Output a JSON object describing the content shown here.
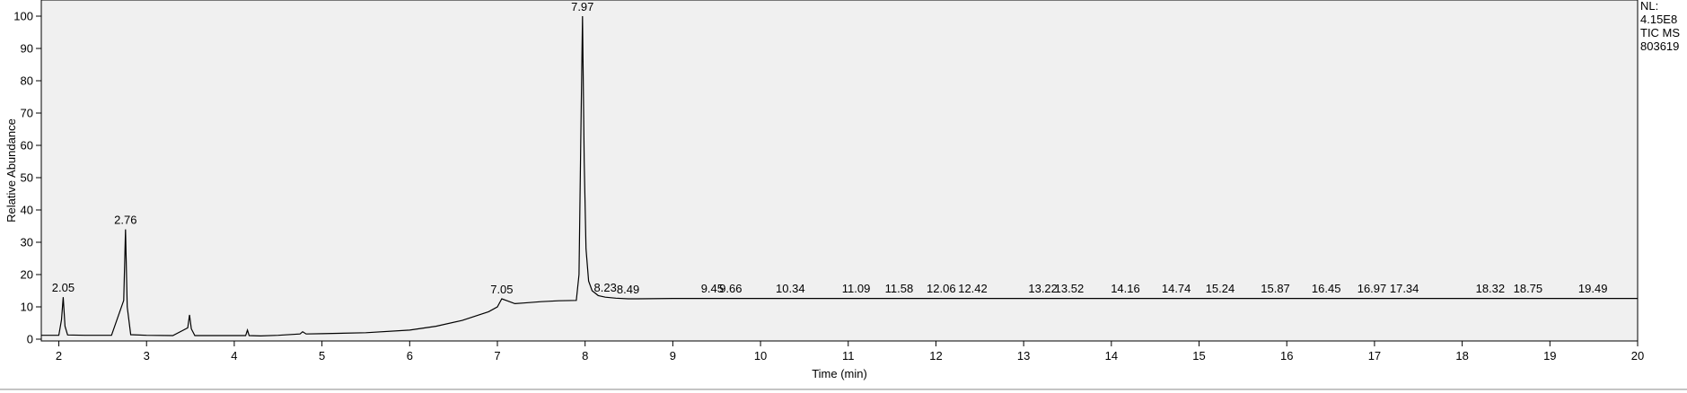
{
  "chart_data": {
    "type": "line",
    "xlabel": "Time (min)",
    "ylabel": "Relative Abundance",
    "xlim": [
      1.8,
      20
    ],
    "ylim": [
      0,
      100
    ],
    "x_ticks": [
      2,
      3,
      4,
      5,
      6,
      7,
      8,
      9,
      10,
      11,
      12,
      13,
      14,
      15,
      16,
      17,
      18,
      19,
      20
    ],
    "y_ticks": [
      0,
      10,
      20,
      30,
      40,
      50,
      60,
      70,
      80,
      90,
      100
    ],
    "grid": false,
    "info": [
      "NL:",
      "4.15E8",
      "TIC  MS",
      "803619"
    ],
    "colors": {
      "trace": "#000000",
      "background": "#f0f0f0",
      "annotation": "#3aa63a"
    },
    "peak_labels": [
      {
        "x": 2.05,
        "y": 13,
        "label": "2.05"
      },
      {
        "x": 2.76,
        "y": 34,
        "label": "2.76"
      },
      {
        "x": 7.05,
        "y": 12.5,
        "label": "7.05"
      },
      {
        "x": 7.97,
        "y": 100,
        "label": "7.97"
      },
      {
        "x": 8.23,
        "y": 13,
        "label": "8.23"
      },
      {
        "x": 8.49,
        "y": 12.5,
        "label": "8.49"
      },
      {
        "x": 9.45,
        "y": 12.8,
        "label": "9.45"
      },
      {
        "x": 9.66,
        "y": 12.8,
        "label": "9.66"
      },
      {
        "x": 10.34,
        "y": 12.8,
        "label": "10.34"
      },
      {
        "x": 11.09,
        "y": 12.8,
        "label": "11.09"
      },
      {
        "x": 11.58,
        "y": 12.8,
        "label": "11.58"
      },
      {
        "x": 12.06,
        "y": 12.8,
        "label": "12.06"
      },
      {
        "x": 12.42,
        "y": 12.8,
        "label": "12.42"
      },
      {
        "x": 13.22,
        "y": 12.8,
        "label": "13.22"
      },
      {
        "x": 13.52,
        "y": 12.8,
        "label": "13.52"
      },
      {
        "x": 14.16,
        "y": 12.8,
        "label": "14.16"
      },
      {
        "x": 14.74,
        "y": 12.8,
        "label": "14.74"
      },
      {
        "x": 15.24,
        "y": 12.8,
        "label": "15.24"
      },
      {
        "x": 15.87,
        "y": 12.8,
        "label": "15.87"
      },
      {
        "x": 16.45,
        "y": 12.8,
        "label": "16.45"
      },
      {
        "x": 16.97,
        "y": 12.8,
        "label": "16.97"
      },
      {
        "x": 17.34,
        "y": 12.8,
        "label": "17.34"
      },
      {
        "x": 18.32,
        "y": 12.8,
        "label": "18.32"
      },
      {
        "x": 18.75,
        "y": 12.8,
        "label": "18.75"
      },
      {
        "x": 19.49,
        "y": 12.8,
        "label": "19.49"
      }
    ],
    "series": [
      {
        "x": [
          1.8,
          2.0,
          2.03,
          2.05,
          2.07,
          2.1,
          2.3,
          2.6,
          2.74,
          2.76,
          2.78,
          2.82,
          3.0,
          3.3,
          3.47,
          3.49,
          3.51,
          3.55,
          3.8,
          4.13,
          4.15,
          4.17,
          4.3,
          4.5,
          4.75,
          4.78,
          4.82,
          5.0,
          5.5,
          6.0,
          6.3,
          6.6,
          6.9,
          7.0,
          7.03,
          7.05,
          7.1,
          7.2,
          7.3,
          7.5,
          7.7,
          7.9,
          7.93,
          7.95,
          7.97,
          7.99,
          8.01,
          8.04,
          8.08,
          8.15,
          8.23,
          8.35,
          8.49,
          8.6,
          9.0,
          9.45,
          9.66,
          10.0,
          10.34,
          11.0,
          11.58,
          12.0,
          12.42,
          13.0,
          13.52,
          14.0,
          14.74,
          15.24,
          15.87,
          16.45,
          16.97,
          17.34,
          18.0,
          18.32,
          18.75,
          19.0,
          19.49,
          20.0
        ],
        "y": [
          1.2,
          1.2,
          6,
          13,
          4,
          1.3,
          1.2,
          1.2,
          12,
          34,
          10,
          1.4,
          1.2,
          1.1,
          3.5,
          7.5,
          3.2,
          1.1,
          1.1,
          1.1,
          2.8,
          1.1,
          1.0,
          1.2,
          1.6,
          2.3,
          1.6,
          1.7,
          2.0,
          2.8,
          4.0,
          5.8,
          8.5,
          10.0,
          11.5,
          12.5,
          12.0,
          11.0,
          11.2,
          11.6,
          11.9,
          12.0,
          20,
          60,
          100,
          55,
          28,
          18,
          15,
          13.5,
          13.0,
          12.7,
          12.5,
          12.5,
          12.6,
          12.6,
          12.6,
          12.6,
          12.6,
          12.6,
          12.6,
          12.6,
          12.6,
          12.6,
          12.6,
          12.6,
          12.6,
          12.6,
          12.6,
          12.6,
          12.6,
          12.6,
          12.6,
          12.6,
          12.6,
          12.6,
          12.6,
          12.6
        ]
      }
    ]
  }
}
